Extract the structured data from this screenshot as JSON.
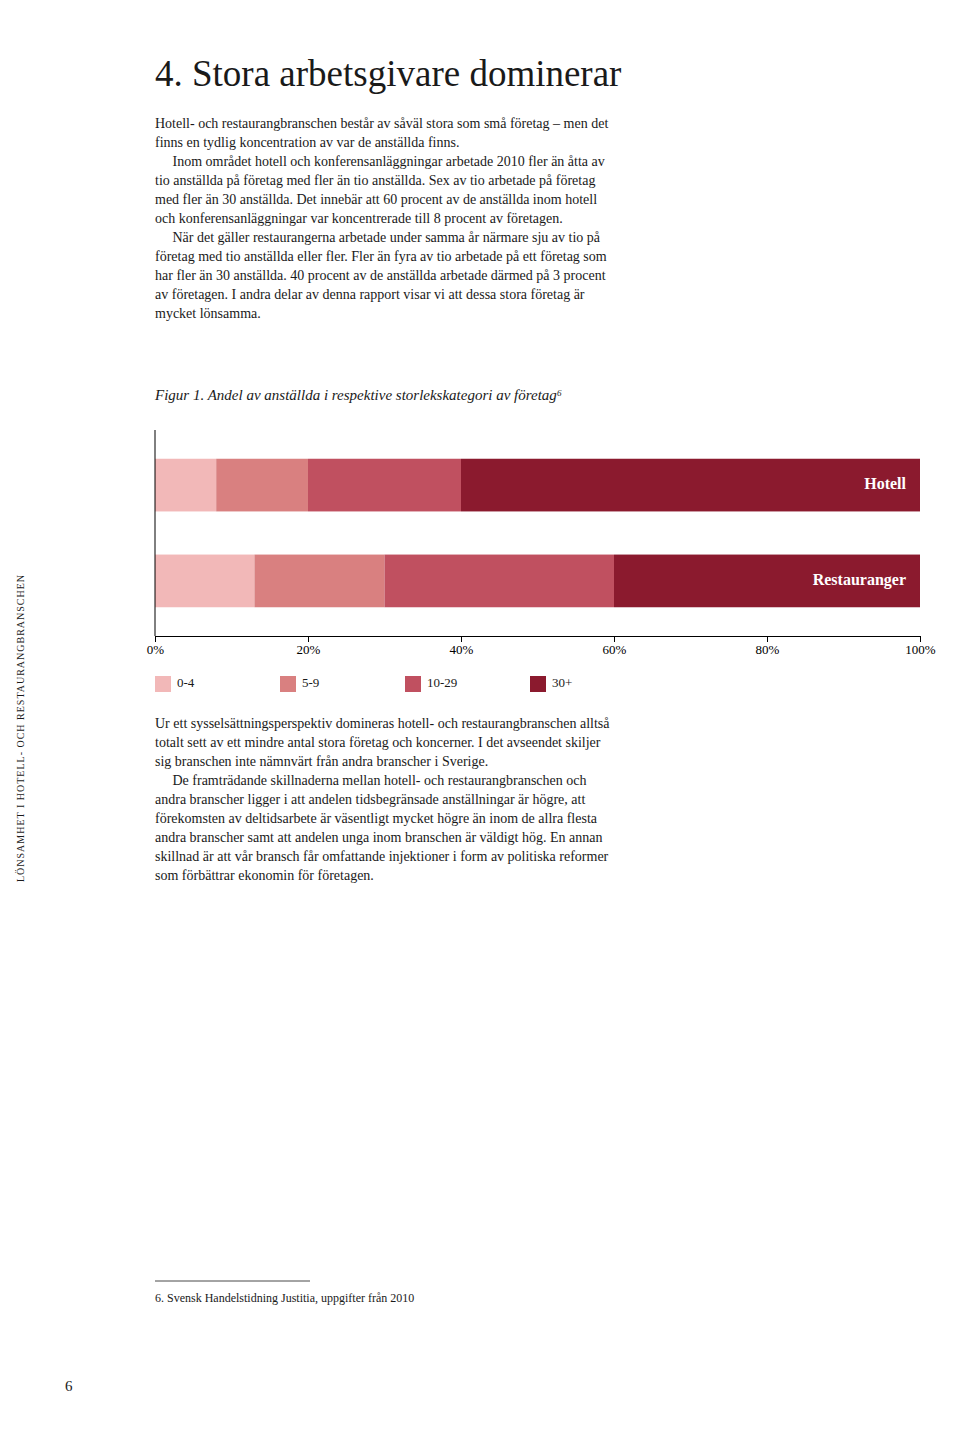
{
  "sidebar_text": "LÖNSAMHET I HOTELL- OCH RESTAURANGBRANSCHEN",
  "main_title": "4. Stora arbetsgivare dominerar",
  "body_text": [
    "Hotell- och restaurangbranschen består av såväl stora som små företag – men det",
    "finns en tydlig koncentration av var de anställda finns.",
    "     Inom området hotell och konferensanläggningar arbetade 2010 fler än åtta av",
    "tio anställda på företag med fler än tio anställda. Sex av tio arbetade på företag",
    "med fler än 30 anställda. Det innebär att 60 procent av de anställda inom hotell",
    "och konferensanläggningar var koncentrerade till 8 procent av företagen.",
    "     När det gäller restaurangerna arbetade under samma år närmare sju av tio på",
    "företag med tio anställda eller fler. Fler än fyra av tio arbetade på ett företag som",
    "har fler än 30 anställda. 40 procent av de anställda arbetade därmed på 3 procent",
    "av företagen. I andra delar av denna rapport visar vi att dessa stora företag är",
    "mycket lönsamma."
  ],
  "body_text2": [
    "Ur ett sysselsättningsperspektiv domineras hotell- och restaurangbranschen alltså",
    "totalt sett av ett mindre antal stora företag och koncerner. I det avseendet skiljer",
    "sig branschen inte nämnvärt från andra branscher i Sverige.",
    "     De framträdande skillnaderna mellan hotell- och restaurangbranschen och",
    "andra branscher ligger i att andelen tidsbegränsade anställningar är högre, att",
    "förekomsten av deltidsarbete är väsentligt mycket högre än inom de allra flesta",
    "andra branscher samt att andelen unga inom branschen är väldigt hög. En annan",
    "skillnad är att vår bransch får omfattande injektioner i form av politiska reformer",
    "som förbättrar ekonomin för företagen."
  ],
  "footnote": "6. Svensk Handelstidning Justitia, uppgifter från 2010",
  "page_number": "6",
  "chart_data": {
    "type": "bar",
    "title": "Figur 1. Andel av anställda i respektive storlekskategori av företag⁶",
    "orientation": "horizontal",
    "stacked": true,
    "categories": [
      "Hotell",
      "Restauranger"
    ],
    "series": [
      {
        "name": "0-4",
        "color": "#f2b8b8",
        "values": [
          8,
          13
        ]
      },
      {
        "name": "5-9",
        "color": "#d98080",
        "values": [
          12,
          17
        ]
      },
      {
        "name": "10-29",
        "color": "#c05060",
        "values": [
          20,
          30
        ]
      },
      {
        "name": "30+",
        "color": "#8b1a2e",
        "values": [
          60,
          40
        ]
      }
    ],
    "xlim": [
      0,
      100
    ],
    "xticks": [
      {
        "value": 0,
        "label": "0%"
      },
      {
        "value": 20,
        "label": "20%"
      },
      {
        "value": 40,
        "label": "40%"
      },
      {
        "value": 60,
        "label": "60%"
      },
      {
        "value": 80,
        "label": "80%"
      },
      {
        "value": 100,
        "label": "100%"
      }
    ],
    "grid": false,
    "legend": "bottom",
    "tick_labels": "x"
  }
}
